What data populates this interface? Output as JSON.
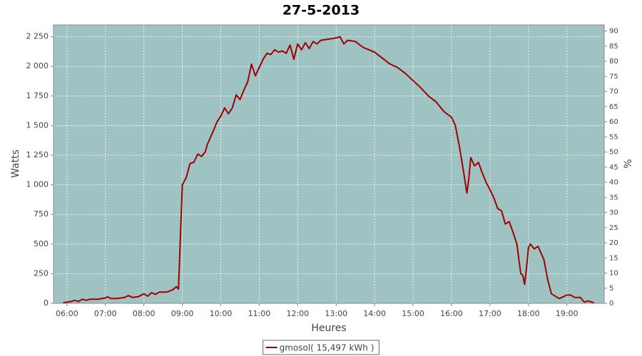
{
  "chart_data": {
    "type": "line",
    "title": "27-5-2013",
    "x_label": "Heures",
    "y_label": "Watts",
    "y2_label": "%",
    "x": [
      5.9,
      6.0,
      6.1,
      6.2,
      6.3,
      6.4,
      6.5,
      6.6,
      6.8,
      7.0,
      7.05,
      7.15,
      7.3,
      7.5,
      7.6,
      7.7,
      7.85,
      8.0,
      8.1,
      8.2,
      8.3,
      8.4,
      8.6,
      8.75,
      8.85,
      8.9,
      8.95,
      9.0,
      9.1,
      9.2,
      9.3,
      9.4,
      9.5,
      9.6,
      9.65,
      9.8,
      9.9,
      10.0,
      10.1,
      10.2,
      10.3,
      10.4,
      10.5,
      10.6,
      10.7,
      10.8,
      10.9,
      11.0,
      11.1,
      11.2,
      11.3,
      11.4,
      11.5,
      11.6,
      11.7,
      11.8,
      11.9,
      12.0,
      12.1,
      12.2,
      12.3,
      12.4,
      12.5,
      12.6,
      12.8,
      13.0,
      13.1,
      13.2,
      13.3,
      13.5,
      13.7,
      14.0,
      14.2,
      14.4,
      14.6,
      14.8,
      15.0,
      15.2,
      15.4,
      15.6,
      15.8,
      16.0,
      16.1,
      16.2,
      16.3,
      16.4,
      16.45,
      16.5,
      16.6,
      16.7,
      16.8,
      16.9,
      17.0,
      17.1,
      17.2,
      17.3,
      17.4,
      17.5,
      17.6,
      17.7,
      17.8,
      17.85,
      17.9,
      17.95,
      18.0,
      18.05,
      18.15,
      18.25,
      18.4,
      18.5,
      18.6,
      18.8,
      19.0,
      19.1,
      19.2,
      19.35,
      19.45,
      19.55,
      19.7
    ],
    "series": [
      {
        "name": "gmosol( 15,497 kWh )",
        "color": "#a00000",
        "values": [
          5,
          10,
          15,
          25,
          15,
          35,
          25,
          35,
          35,
          45,
          55,
          40,
          40,
          50,
          65,
          50,
          55,
          80,
          60,
          90,
          75,
          95,
          95,
          115,
          140,
          120,
          560,
          1000,
          1060,
          1180,
          1190,
          1260,
          1240,
          1280,
          1340,
          1450,
          1530,
          1580,
          1650,
          1600,
          1650,
          1760,
          1720,
          1800,
          1870,
          2020,
          1920,
          1990,
          2060,
          2110,
          2100,
          2140,
          2120,
          2130,
          2110,
          2180,
          2060,
          2190,
          2140,
          2200,
          2150,
          2210,
          2190,
          2220,
          2230,
          2240,
          2250,
          2190,
          2220,
          2210,
          2160,
          2120,
          2070,
          2020,
          1990,
          1940,
          1880,
          1820,
          1750,
          1700,
          1620,
          1570,
          1500,
          1330,
          1140,
          930,
          1050,
          1230,
          1160,
          1190,
          1100,
          1020,
          960,
          890,
          800,
          780,
          670,
          690,
          600,
          500,
          250,
          240,
          160,
          300,
          470,
          500,
          460,
          480,
          370,
          200,
          80,
          40,
          70,
          70,
          50,
          50,
          10,
          20,
          5
        ]
      }
    ],
    "xlim": [
      5.65,
      19.97
    ],
    "xticks": [
      {
        "value": 6,
        "label": "06:00"
      },
      {
        "value": 7,
        "label": "07:00"
      },
      {
        "value": 8,
        "label": "08:00"
      },
      {
        "value": 9,
        "label": "09:00"
      },
      {
        "value": 10,
        "label": "10:00"
      },
      {
        "value": 11,
        "label": "11:00"
      },
      {
        "value": 12,
        "label": "12:00"
      },
      {
        "value": 13,
        "label": "13:00"
      },
      {
        "value": 14,
        "label": "14:00"
      },
      {
        "value": 15,
        "label": "15:00"
      },
      {
        "value": 16,
        "label": "16:00"
      },
      {
        "value": 17,
        "label": "17:00"
      },
      {
        "value": 18,
        "label": "18:00"
      },
      {
        "value": 19,
        "label": "19:00"
      }
    ],
    "ylim": [
      0,
      2350
    ],
    "yticks": [
      0,
      250,
      500,
      750,
      {
        "value": 1000,
        "label": "1 000"
      },
      {
        "value": 1250,
        "label": "1 250"
      },
      {
        "value": 1500,
        "label": "1 500"
      },
      {
        "value": 1750,
        "label": "1 750"
      },
      {
        "value": 2000,
        "label": "2 000"
      },
      {
        "value": 2250,
        "label": "2 250"
      }
    ],
    "y2lim": [
      0,
      92
    ],
    "y2ticks": [
      0,
      5,
      10,
      15,
      20,
      25,
      30,
      35,
      40,
      45,
      50,
      55,
      60,
      65,
      70,
      75,
      80,
      85,
      90
    ],
    "grid": true,
    "background": "#9fc3c2"
  }
}
